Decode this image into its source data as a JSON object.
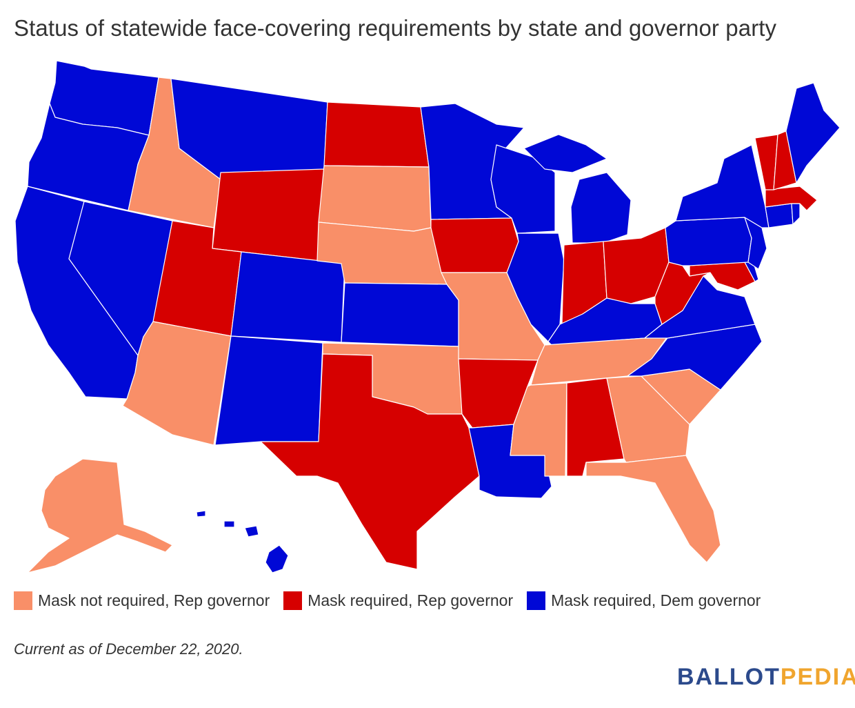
{
  "title": "Status of statewide face-covering requirements by state and governor party",
  "colors": {
    "not_required_rep": "#f98f68",
    "required_rep": "#d60000",
    "required_dem": "#0008d6"
  },
  "legend": [
    {
      "key": "not_required_rep",
      "label": "Mask not required, Rep governor"
    },
    {
      "key": "required_rep",
      "label": "Mask required, Rep governor"
    },
    {
      "key": "required_dem",
      "label": "Mask required, Dem governor"
    }
  ],
  "note": "Current as of December 22, 2020.",
  "logo": {
    "part1": "BALLOT",
    "part2": "PEDIA"
  },
  "states": {
    "WA": "required_dem",
    "OR": "required_dem",
    "CA": "required_dem",
    "NV": "required_dem",
    "ID": "not_required_rep",
    "MT": "required_dem",
    "WY": "required_rep",
    "UT": "required_rep",
    "AZ": "not_required_rep",
    "CO": "required_dem",
    "NM": "required_dem",
    "ND": "required_rep",
    "SD": "not_required_rep",
    "NE": "not_required_rep",
    "KS": "required_dem",
    "OK": "not_required_rep",
    "TX": "required_rep",
    "MN": "required_dem",
    "IA": "required_rep",
    "MO": "not_required_rep",
    "AR": "required_rep",
    "LA": "required_dem",
    "WI": "required_dem",
    "IL": "required_dem",
    "MI": "required_dem",
    "IN": "required_rep",
    "OH": "required_rep",
    "KY": "required_dem",
    "TN": "not_required_rep",
    "MS": "not_required_rep",
    "AL": "required_rep",
    "GA": "not_required_rep",
    "FL": "not_required_rep",
    "SC": "not_required_rep",
    "NC": "required_dem",
    "VA": "required_dem",
    "WV": "required_rep",
    "MD": "required_rep",
    "DE": "required_dem",
    "PA": "required_dem",
    "NJ": "required_dem",
    "NY": "required_dem",
    "CT": "required_dem",
    "RI": "required_dem",
    "MA": "required_rep",
    "VT": "required_rep",
    "NH": "required_rep",
    "ME": "required_dem",
    "AK": "not_required_rep",
    "HI": "required_dem"
  }
}
